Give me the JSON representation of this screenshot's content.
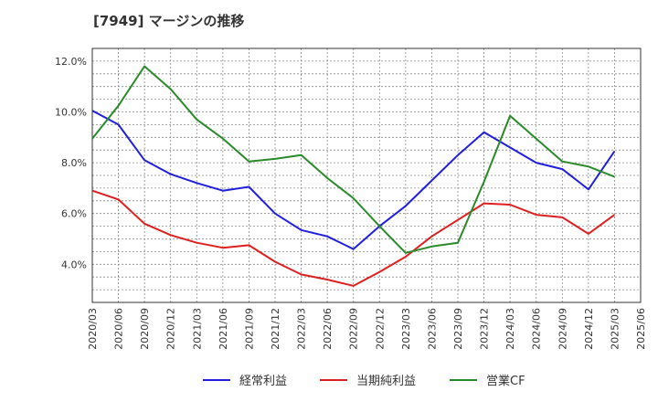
{
  "title": "[7949]  マージンの推移",
  "colors": {
    "blue": "#1f1fdd",
    "red": "#dd1f1f",
    "green": "#2a8a2a",
    "grid": "#888888"
  },
  "chart_data": {
    "type": "line",
    "title": "[7949]  マージンの推移",
    "x": [
      "2020/03",
      "2020/06",
      "2020/09",
      "2020/12",
      "2021/03",
      "2021/06",
      "2021/09",
      "2021/12",
      "2022/03",
      "2022/06",
      "2022/09",
      "2022/12",
      "2023/03",
      "2023/06",
      "2023/09",
      "2023/12",
      "2024/03",
      "2024/06",
      "2024/09",
      "2024/12",
      "2025/03",
      "2025/06"
    ],
    "ylim": [
      2.5,
      12.5
    ],
    "yticks": [
      "4.0%",
      "6.0%",
      "8.0%",
      "10.0%",
      "12.0%"
    ],
    "ytick_values": [
      4,
      6,
      8,
      10,
      12
    ],
    "grid": true,
    "legend": "bottom",
    "series": [
      {
        "name": "経常利益",
        "color": "#1f1fdd",
        "values": [
          10.05,
          9.5,
          8.1,
          7.55,
          7.2,
          6.9,
          7.05,
          6.0,
          5.35,
          5.1,
          4.6,
          5.5,
          6.3,
          7.3,
          8.3,
          9.2,
          8.6,
          8.0,
          7.75,
          6.95,
          8.45,
          null
        ]
      },
      {
        "name": "当期純利益",
        "color": "#dd1f1f",
        "values": [
          6.9,
          6.55,
          5.6,
          5.15,
          4.85,
          4.65,
          4.75,
          4.1,
          3.6,
          3.4,
          3.15,
          3.7,
          4.3,
          5.1,
          5.75,
          6.4,
          6.35,
          5.95,
          5.85,
          5.2,
          5.95,
          null
        ]
      },
      {
        "name": "営業CF",
        "color": "#2a8a2a",
        "values": [
          8.95,
          10.25,
          11.8,
          10.9,
          9.7,
          8.95,
          8.05,
          8.15,
          8.3,
          7.4,
          6.6,
          5.5,
          4.45,
          4.7,
          4.85,
          7.25,
          9.85,
          8.95,
          8.05,
          7.85,
          7.45,
          null
        ]
      }
    ]
  }
}
